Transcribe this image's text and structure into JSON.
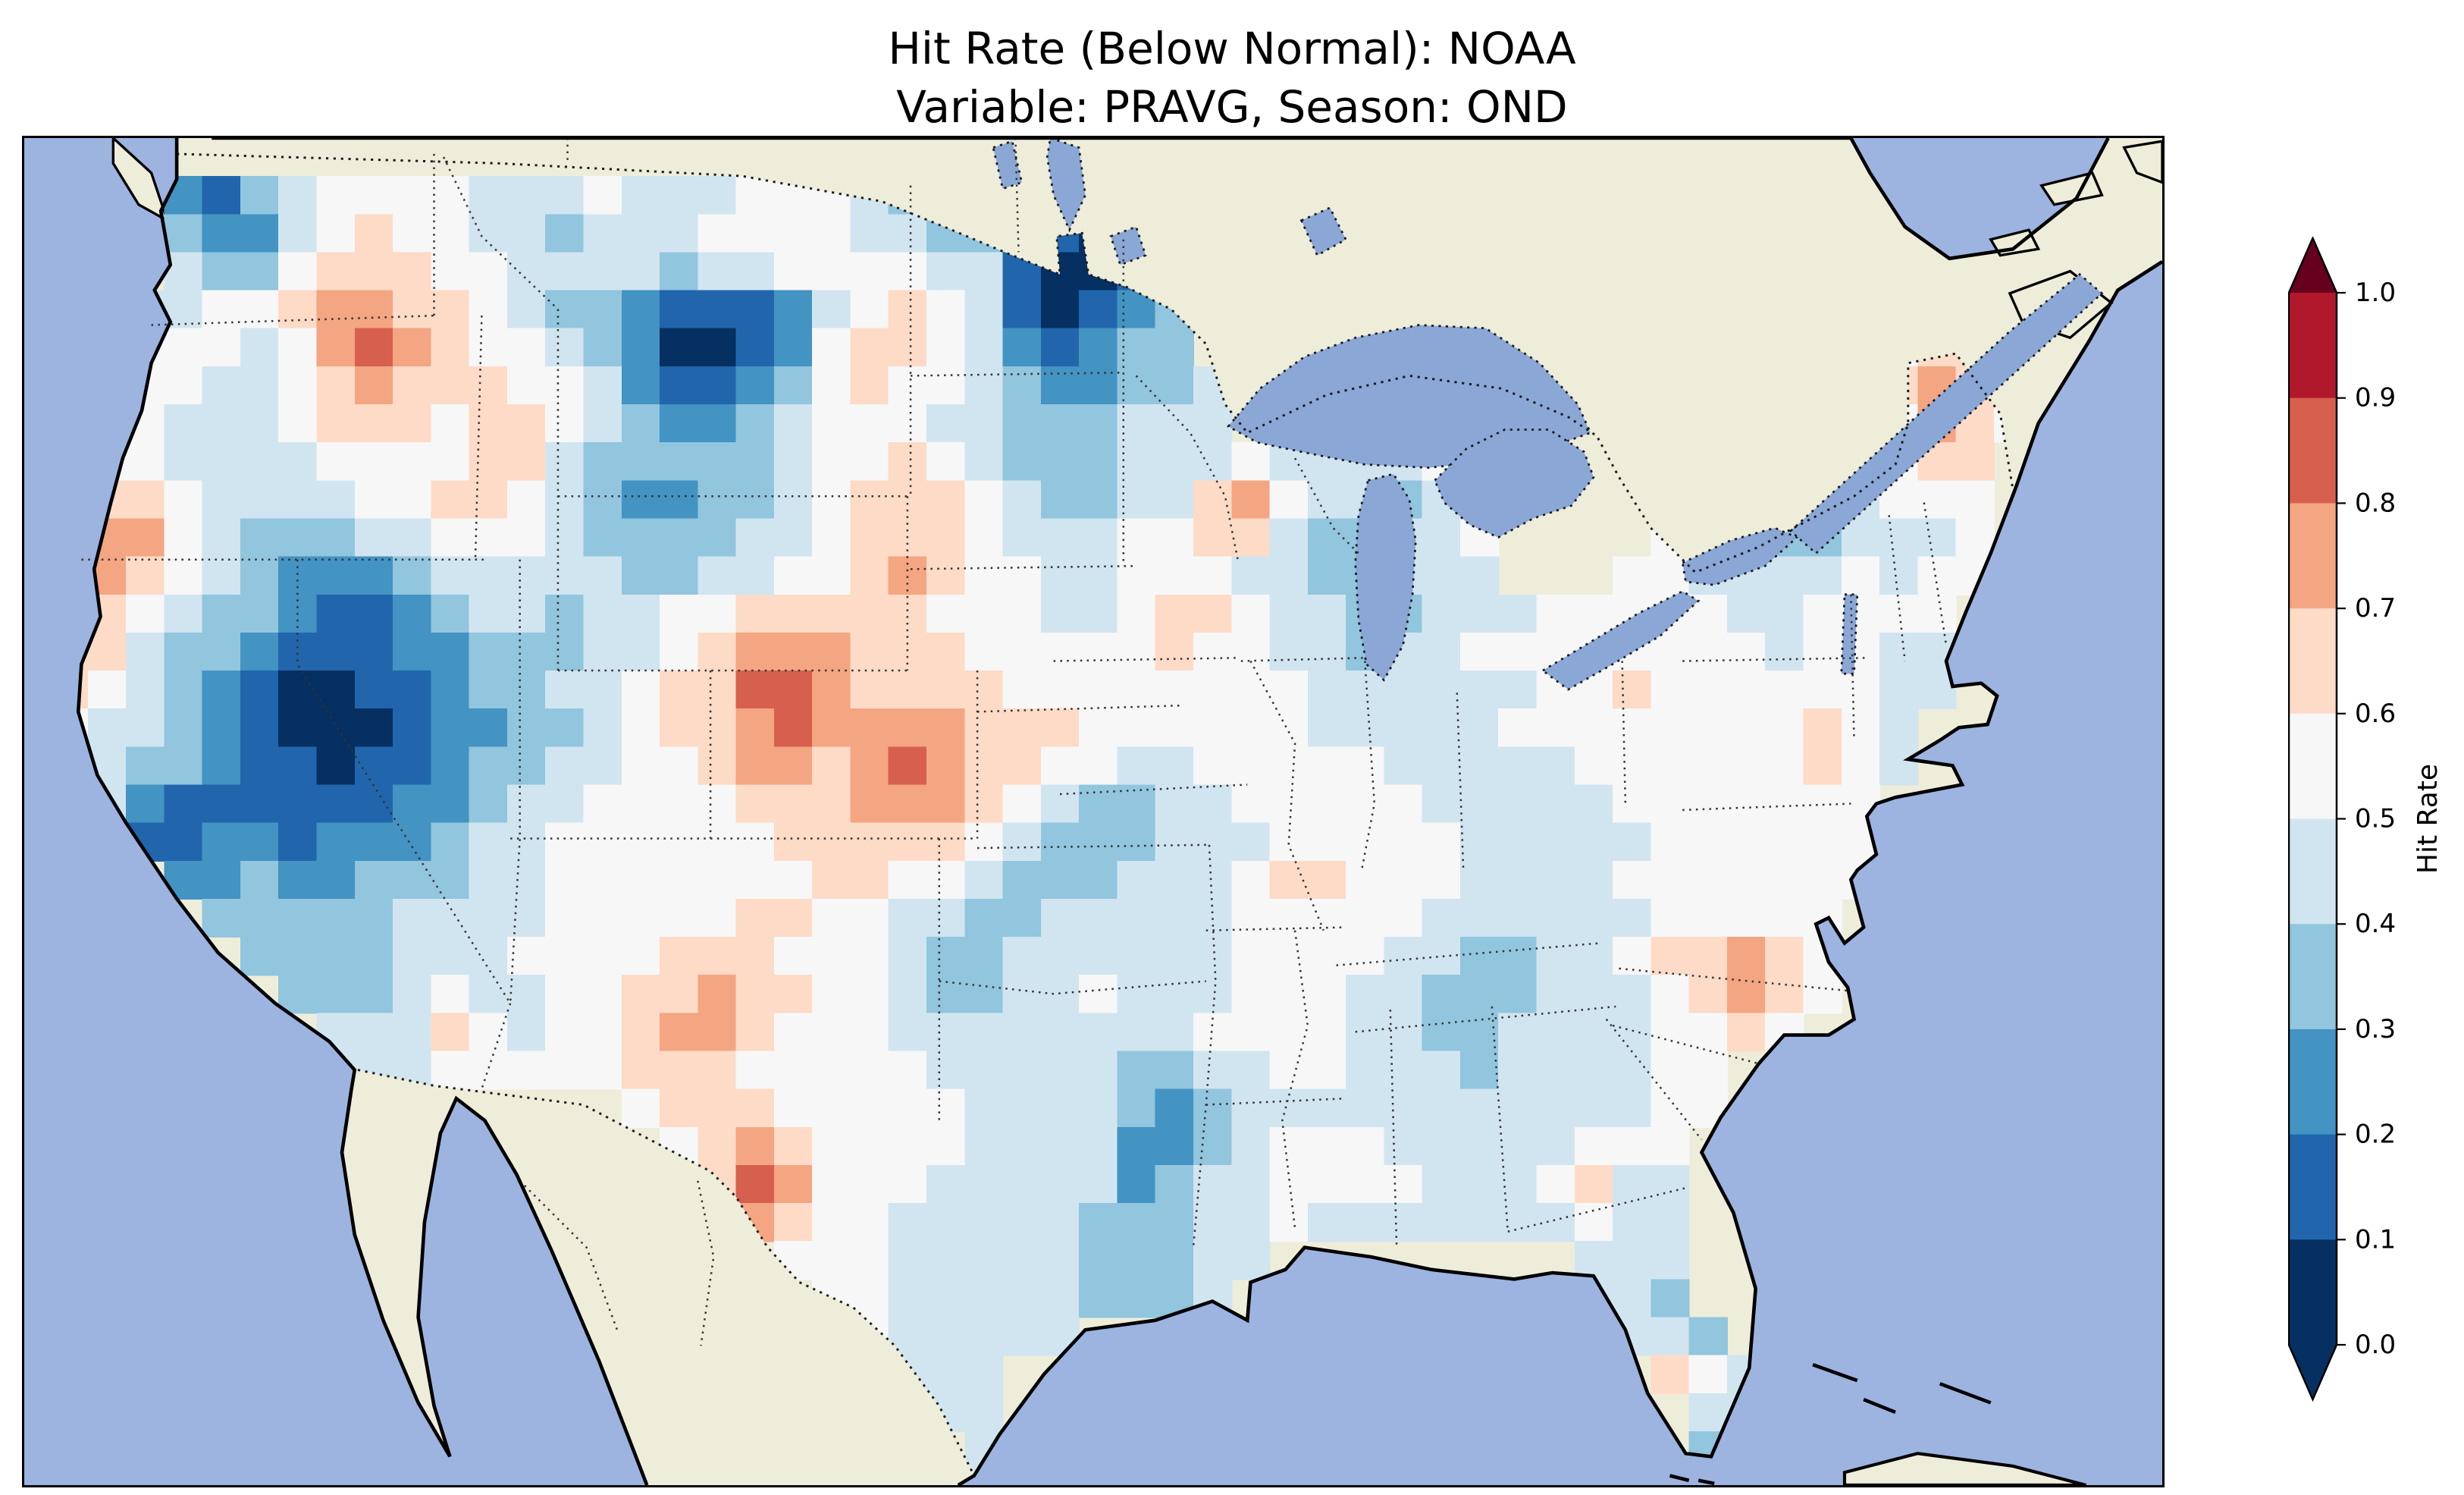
{
  "chart_data": {
    "type": "heatmap",
    "title": "Hit Rate (Below Normal): NOAA",
    "subtitle": "Variable: PRAVG, Season: OND",
    "region": "Contiguous United States on a North America basemap (ocean, Canada and Mexico unshaded)",
    "value_semantics": "Hit Rate, dimensionless, range 0.0 to 1.0",
    "colorbar": {
      "label": "Hit Rate",
      "ticks": [
        "1.0",
        "0.9",
        "0.8",
        "0.7",
        "0.6",
        "0.5",
        "0.4",
        "0.3",
        "0.2",
        "0.1",
        "0.0"
      ],
      "range": [
        0.0,
        1.0
      ],
      "bin_colors_low_to_high": [
        "#053061",
        "#2166ac",
        "#4393c3",
        "#92c5de",
        "#d1e5f0",
        "#f7f7f7",
        "#fddbc7",
        "#f4a582",
        "#d6604d",
        "#b2182b"
      ],
      "under_color": "#053061",
      "over_color": "#67001f"
    },
    "basemap_colors": {
      "ocean": "#9db3e0",
      "land": "#eeedda",
      "lakes": "#8aa7d6",
      "coastline": "#000000",
      "borders_dotted": "#1a1a1a"
    },
    "grid_encoding": "Each row string is one latitude band of grid cells (west to east). Digit d = hit-rate decile bin [d/10, d/10+0.1); '.' = no data (outside CONUS). Cell size 24 SVG units, origin x=16, y=0.",
    "grid": {
      "cell_size": 24,
      "origin": [
        16,
        0
      ],
      "rows": [
        "....................................................",
        "...2134555544454445554333221........................",
        "...32245655443444555544332102.......................",
        "...433566655444434455554410013......................",
        "..4455677665433211124565410123......................",
        "..5554578765543200125665421233..................566.",
        "..55445676665542112356554322334................56765",
        "..54445666566543223455544333444...............445765",
        ".554444555566433333455654333444544445........444566.",
        ".6654444556654322334566654334467544344......4334555.",
        ".7754333445554333344566654445566433445....544334445.",
        ".7654322234444433445567655445554433444...5544445455.",
        ".6543321123443445566666555445665443344455555445555..",
        "66433211122333445677766655555655443445555555545544..",
        "65432100112334456688766665555555544444455655555544..",
        "5443210001223345667877776665555554444455555555654...",
        "5433211011233445567767876655445555544444555555654...",
        "542111111223445555666777654334455555444445555555....",
        "541122122234455555566666543334445555544444555555....",
        "...223223334455555556655433344456655544445555555....",
        "....3333344445555566554433444445555544444455555.....",
        ".....333344455556665554334444445555443344566765.....",
        "......33345445566766554334454445554433344456765.....",
        ".......444654556776555444444445555443344445565......",
        ".......4445555566655555444443344554443444455........",
        "...............56665555544443234444444444455........",
        "................567655554444223455544444555.........",
        ".................68755544444234455554445644.........",
        ".................57655444443334454444444544.........",
        "...................5554444433344........444.........",
        "....................55444443334.........443.........",
        ".....................544444..............443........",
        "......................444.................654.......",
        ".......................44..................44.......",
        "........................4..................3........"
      ]
    }
  }
}
